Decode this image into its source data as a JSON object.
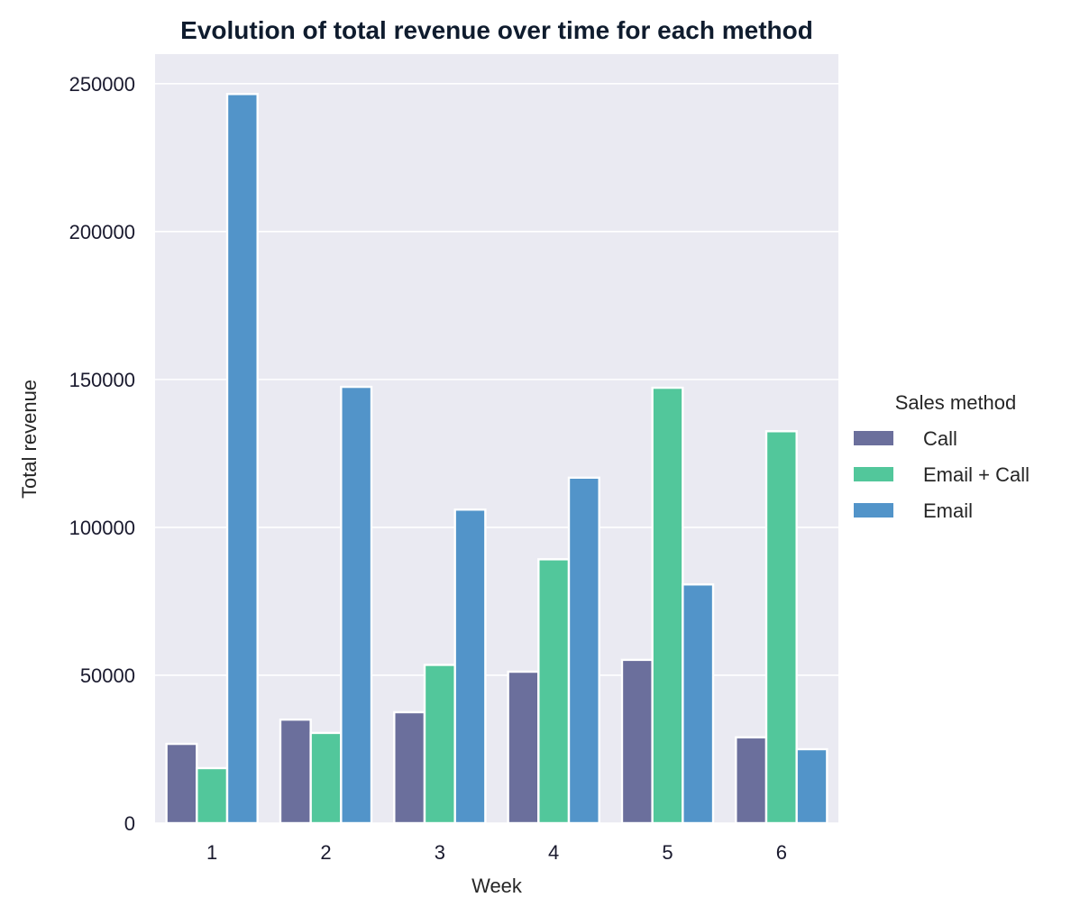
{
  "chart_data": {
    "type": "bar",
    "title": "Evolution of total revenue over time for each method",
    "xlabel": "Week",
    "ylabel": "Total revenue",
    "categories": [
      "1",
      "2",
      "3",
      "4",
      "5",
      "6"
    ],
    "yticks": [
      "0",
      "50000",
      "100000",
      "150000",
      "200000",
      "250000"
    ],
    "ylim": [
      0,
      260000
    ],
    "grid": true,
    "legend": {
      "title": "Sales method",
      "placement": "right"
    },
    "series": [
      {
        "name": "Call",
        "color": "#6b6f9c",
        "values": [
          26800,
          35000,
          37500,
          51200,
          55200,
          29000
        ]
      },
      {
        "name": "Email + Call",
        "color": "#52c79b",
        "values": [
          18600,
          30500,
          53500,
          89200,
          147200,
          132500
        ]
      },
      {
        "name": "Email",
        "color": "#5294c9",
        "values": [
          246500,
          147500,
          106000,
          116800,
          80700,
          25000
        ]
      }
    ]
  }
}
